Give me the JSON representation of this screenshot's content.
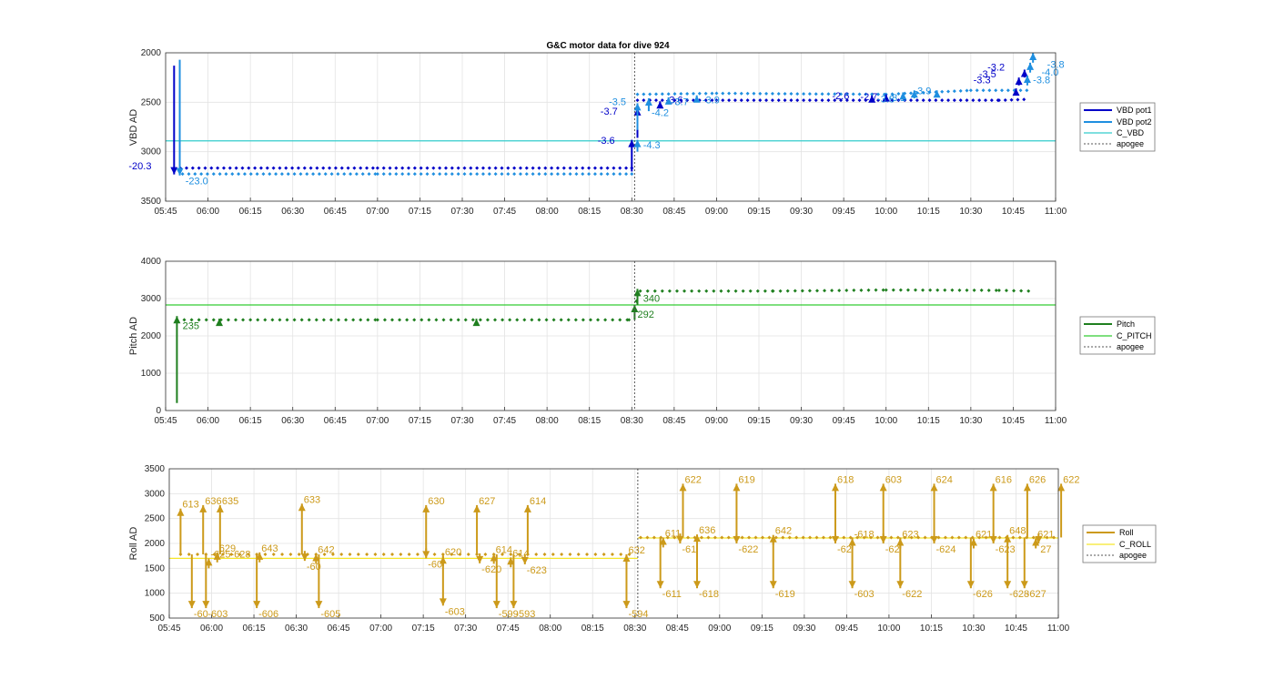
{
  "figure": {
    "title": "G&C motor data for dive 924",
    "x_ticks": [
      "05:45",
      "06:00",
      "06:15",
      "06:30",
      "06:45",
      "07:00",
      "07:15",
      "07:30",
      "07:45",
      "08:00",
      "08:15",
      "08:30",
      "08:45",
      "09:00",
      "09:15",
      "09:30",
      "09:45",
      "10:00",
      "10:15",
      "10:30",
      "10:45",
      "11:00"
    ],
    "x_range_minutes": [
      345,
      660
    ],
    "apogee_minutes": 511
  },
  "chart_data": [
    {
      "type": "line",
      "name": "vbd",
      "ylabel": "VBD AD",
      "ylim": [
        2000,
        3500
      ],
      "y_reversed": true,
      "y_ticks": [
        2000,
        2500,
        3000,
        3500
      ],
      "grid": true,
      "legend": [
        "VBD pot1",
        "VBD pot2",
        "C_VBD",
        "apogee"
      ],
      "legend_position": "right",
      "colors": {
        "pot1": "#0000c8",
        "pot2": "#1f8fe0",
        "c_vbd": "#33cccc",
        "apogee": "#555555"
      },
      "reference_line": 2890,
      "steady_pot1": [
        [
          348,
          3165
        ],
        [
          420,
          3165
        ],
        [
          510,
          3165
        ],
        [
          512,
          2480
        ],
        [
          540,
          2480
        ],
        [
          600,
          2480
        ],
        [
          640,
          2480
        ],
        [
          651,
          2470
        ]
      ],
      "steady_pot2": [
        [
          351,
          3225
        ],
        [
          420,
          3225
        ],
        [
          510,
          3225
        ],
        [
          512,
          2420
        ],
        [
          540,
          2410
        ],
        [
          600,
          2420
        ],
        [
          630,
          2380
        ],
        [
          651,
          2380
        ]
      ],
      "arrows": [
        {
          "x": 348,
          "y0": 2130,
          "y1": 3230,
          "color": "pot1",
          "label": "-20.3",
          "lx": 340,
          "ly": 3180
        },
        {
          "x": 350,
          "y0": 2070,
          "y1": 3240,
          "color": "pot2",
          "label": "-23.0",
          "lx": 352,
          "ly": 3330
        },
        {
          "x": 510,
          "y0": 3200,
          "y1": 2880,
          "color": "pot1",
          "label": "-3.6",
          "lx": 504,
          "ly": 2920
        },
        {
          "x": 512,
          "y0": 2860,
          "y1": 2560,
          "color": "pot1",
          "label": "-3.7",
          "lx": 505,
          "ly": 2625
        },
        {
          "x": 512,
          "y0": 2780,
          "y1": 2510,
          "color": "pot2",
          "label": "-3.5",
          "lx": 508,
          "ly": 2530
        },
        {
          "x": 516,
          "y0": 2590,
          "y1": 2460,
          "color": "pot2",
          "label": "-4.2",
          "lx": 517,
          "ly": 2640
        },
        {
          "x": 512,
          "y0": 3000,
          "y1": 2880,
          "color": "pot2",
          "label": "-4.3",
          "lx": 514,
          "ly": 2965
        },
        {
          "x": 520,
          "y0": 2520,
          "y1": 2490,
          "color": "pot1",
          "label": "-3.6",
          "lx": 522,
          "ly": 2510
        },
        {
          "x": 523,
          "y0": 2480,
          "y1": 2450,
          "color": "pot2",
          "label": "-3.7",
          "lx": 524,
          "ly": 2530
        },
        {
          "x": 533,
          "y0": 2480,
          "y1": 2430,
          "color": "pot2",
          "label": "-3.9",
          "lx": 535,
          "ly": 2510
        },
        {
          "x": 595,
          "y0": 2470,
          "y1": 2430,
          "color": "pot1",
          "label": "-2.6",
          "lx": 587,
          "ly": 2470
        },
        {
          "x": 600,
          "y0": 2470,
          "y1": 2420,
          "color": "pot1",
          "label": "-2.7",
          "lx": 597,
          "ly": 2480
        },
        {
          "x": 606,
          "y0": 2460,
          "y1": 2400,
          "color": "pot2",
          "label": "-3.8",
          "lx": 603,
          "ly": 2500
        },
        {
          "x": 610,
          "y0": 2460,
          "y1": 2380,
          "color": "pot2",
          "label": "-3.1",
          "lx": 607,
          "ly": 2490
        },
        {
          "x": 618,
          "y0": 2420,
          "y1": 2380,
          "color": "pot2",
          "label": "-3.9",
          "lx": 616,
          "ly": 2420
        },
        {
          "x": 646,
          "y0": 2390,
          "y1": 2360,
          "color": "pot1",
          "label": "-3.3",
          "lx": 637,
          "ly": 2310
        },
        {
          "x": 647,
          "y0": 2330,
          "y1": 2250,
          "color": "pot1",
          "label": "-3.5",
          "lx": 639,
          "ly": 2250
        },
        {
          "x": 649,
          "y0": 2250,
          "y1": 2170,
          "color": "pot1",
          "label": "-3.2",
          "lx": 642,
          "ly": 2180
        },
        {
          "x": 650,
          "y0": 2330,
          "y1": 2230,
          "color": "pot2",
          "label": "-3.8",
          "lx": 652,
          "ly": 2310
        },
        {
          "x": 651,
          "y0": 2200,
          "y1": 2100,
          "color": "pot2",
          "label": "-4.0",
          "lx": 655,
          "ly": 2230
        },
        {
          "x": 652,
          "y0": 2100,
          "y1": 2000,
          "color": "pot2",
          "label": "-3.8",
          "lx": 657,
          "ly": 2150
        }
      ]
    },
    {
      "type": "line",
      "name": "pitch",
      "ylabel": "Pitch AD",
      "ylim": [
        0,
        4000
      ],
      "y_ticks": [
        0,
        1000,
        2000,
        3000,
        4000
      ],
      "grid": true,
      "legend": [
        "Pitch",
        "C_PITCH",
        "apogee"
      ],
      "legend_position": "right",
      "colors": {
        "pitch": "#1f7f1f",
        "c_pitch": "#33cc33",
        "apogee": "#555555"
      },
      "reference_line": 2830,
      "steady": [
        [
          349,
          2430
        ],
        [
          420,
          2430
        ],
        [
          509,
          2430
        ],
        [
          513,
          3200
        ],
        [
          560,
          3200
        ],
        [
          600,
          3230
        ],
        [
          640,
          3220
        ],
        [
          651,
          3200
        ]
      ],
      "arrows": [
        {
          "x": 349,
          "y0": 200,
          "y1": 2530,
          "label": "235",
          "lx": 351,
          "ly": 2180
        },
        {
          "x": 364,
          "y0": 2400,
          "y1": 2460,
          "label": "",
          "lx": 0,
          "ly": 0
        },
        {
          "x": 455,
          "y0": 2400,
          "y1": 2460,
          "label": "",
          "lx": 0,
          "ly": 0
        },
        {
          "x": 511,
          "y0": 2430,
          "y1": 2830,
          "label": "292",
          "lx": 512,
          "ly": 2490
        },
        {
          "x": 512,
          "y0": 2830,
          "y1": 3260,
          "label": "340",
          "lx": 514,
          "ly": 2910
        }
      ]
    },
    {
      "type": "line",
      "name": "roll",
      "ylabel": "Roll AD",
      "ylim": [
        500,
        3500
      ],
      "y_ticks": [
        500,
        1000,
        1500,
        2000,
        2500,
        3000,
        3500
      ],
      "grid": true,
      "legend": [
        "Roll",
        "C_ROLL",
        "apogee"
      ],
      "legend_position": "right",
      "colors": {
        "roll": "#cc9a1a",
        "c_roll": "#f5e62a",
        "apogee": "#555555"
      },
      "ref_before": 1700,
      "ref_after": 2110,
      "steady_before": 1780,
      "steady_after": 2120,
      "arrows_up": [
        {
          "x": 349,
          "label": "613",
          "top": 2700
        },
        {
          "x": 357,
          "label": "636",
          "top": 2770
        },
        {
          "x": 363,
          "label": "635",
          "top": 2770
        },
        {
          "x": 362,
          "label": "629",
          "top": 1820
        },
        {
          "x": 359,
          "label": "-625-628",
          "top": 1700
        },
        {
          "x": 377,
          "label": "643",
          "top": 1820
        },
        {
          "x": 392,
          "label": "633",
          "top": 2800
        },
        {
          "x": 397,
          "label": "642",
          "top": 1790
        },
        {
          "x": 436,
          "label": "630",
          "top": 2770
        },
        {
          "x": 442,
          "label": "620",
          "top": 1740
        },
        {
          "x": 454,
          "label": "627",
          "top": 2770
        },
        {
          "x": 460,
          "label": "614",
          "top": 1790
        },
        {
          "x": 466,
          "label": "614",
          "top": 1720
        },
        {
          "x": 472,
          "label": "614",
          "top": 2770
        },
        {
          "x": 507,
          "label": "632",
          "top": 1780
        },
        {
          "x": 520,
          "label": "611",
          "top": 2120
        },
        {
          "x": 527,
          "label": "622",
          "top": 3200
        },
        {
          "x": 532,
          "label": "636",
          "top": 2180
        },
        {
          "x": 546,
          "label": "619",
          "top": 3200
        },
        {
          "x": 559,
          "label": "642",
          "top": 2170
        },
        {
          "x": 581,
          "label": "618",
          "top": 3200
        },
        {
          "x": 587,
          "label": "-618",
          "top": 2100
        },
        {
          "x": 598,
          "label": "603",
          "top": 3200
        },
        {
          "x": 604,
          "label": "623",
          "top": 2100
        },
        {
          "x": 616,
          "label": "624",
          "top": 3200
        },
        {
          "x": 630,
          "label": "621",
          "top": 2100
        },
        {
          "x": 637,
          "label": "616",
          "top": 3200
        },
        {
          "x": 642,
          "label": "648",
          "top": 2170
        },
        {
          "x": 649,
          "label": "626",
          "top": 3200
        },
        {
          "x": 652,
          "label": "621",
          "top": 2100
        },
        {
          "x": 661,
          "label": "622",
          "top": 3200
        }
      ],
      "arrows_down": [
        {
          "x": 353,
          "label": "-60",
          "bottom": 700
        },
        {
          "x": 358,
          "label": "-603",
          "bottom": 700
        },
        {
          "x": 376,
          "label": "-606",
          "bottom": 700
        },
        {
          "x": 398,
          "label": "-605",
          "bottom": 700
        },
        {
          "x": 393,
          "label": "-60",
          "bottom": 1650
        },
        {
          "x": 436,
          "label": "-60",
          "bottom": 1700
        },
        {
          "x": 442,
          "label": "-603",
          "bottom": 750
        },
        {
          "x": 455,
          "label": "-620",
          "bottom": 1600
        },
        {
          "x": 461,
          "label": "-599",
          "bottom": 700
        },
        {
          "x": 467,
          "label": "-593",
          "bottom": 700
        },
        {
          "x": 471,
          "label": "-623",
          "bottom": 1580
        },
        {
          "x": 507,
          "label": "-594",
          "bottom": 700
        },
        {
          "x": 519,
          "label": "-611",
          "bottom": 1100
        },
        {
          "x": 526,
          "label": "-61",
          "bottom": 2000
        },
        {
          "x": 532,
          "label": "-618",
          "bottom": 1100
        },
        {
          "x": 546,
          "label": "-622",
          "bottom": 2000
        },
        {
          "x": 559,
          "label": "-619",
          "bottom": 1100
        },
        {
          "x": 581,
          "label": "-62",
          "bottom": 2000
        },
        {
          "x": 587,
          "label": "-603",
          "bottom": 1100
        },
        {
          "x": 598,
          "label": "-62",
          "bottom": 2000
        },
        {
          "x": 604,
          "label": "-622",
          "bottom": 1100
        },
        {
          "x": 616,
          "label": "-624",
          "bottom": 2000
        },
        {
          "x": 629,
          "label": "-626",
          "bottom": 1100
        },
        {
          "x": 637,
          "label": "-623",
          "bottom": 2000
        },
        {
          "x": 642,
          "label": "-628",
          "bottom": 1100
        },
        {
          "x": 648,
          "label": "-627",
          "bottom": 1100
        },
        {
          "x": 653,
          "label": "27",
          "bottom": 2000
        }
      ]
    }
  ]
}
